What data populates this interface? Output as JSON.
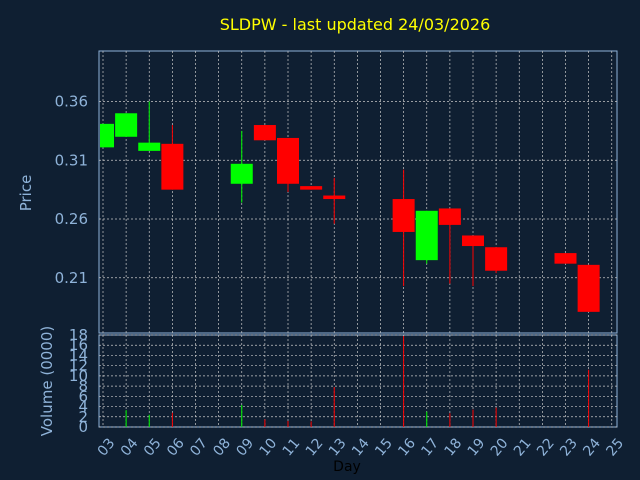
{
  "chart_data": [
    {
      "type": "candlestick",
      "title": "SLDPW - last updated 24/03/2026",
      "ylabel": "Price",
      "ylim": [
        0.163,
        0.403
      ],
      "yticks": [
        0.21,
        0.26,
        0.31,
        0.36
      ],
      "ytick_labels": [
        "0.21",
        "0.26",
        "0.31",
        "0.36"
      ],
      "grid": true,
      "colors": {
        "up": "#00ff00",
        "down": "#ff0000",
        "title": "#ffff00",
        "axis_text": "#8fb3d9",
        "xlabel": "#000000",
        "background": "#0f1f32",
        "frame": "#8fb3d9",
        "grid": "#c8c8c8"
      },
      "x_tick_labels": [
        "03",
        "04",
        "05",
        "06",
        "07",
        "08",
        "09",
        "10",
        "11",
        "12",
        "13",
        "14",
        "15",
        "16",
        "17",
        "18",
        "19",
        "20",
        "21",
        "22",
        "23",
        "24",
        "25"
      ],
      "candles": [
        {
          "day": "03",
          "open": 0.321,
          "high": 0.341,
          "low": 0.321,
          "close": 0.341
        },
        {
          "day": "04",
          "open": 0.33,
          "high": 0.35,
          "low": 0.33,
          "close": 0.35
        },
        {
          "day": "05",
          "open": 0.318,
          "high": 0.36,
          "low": 0.318,
          "close": 0.325
        },
        {
          "day": "06",
          "open": 0.324,
          "high": 0.34,
          "low": 0.285,
          "close": 0.285
        },
        {
          "day": "09",
          "open": 0.29,
          "high": 0.335,
          "low": 0.274,
          "close": 0.307
        },
        {
          "day": "10",
          "open": 0.34,
          "high": 0.34,
          "low": 0.328,
          "close": 0.327
        },
        {
          "day": "11",
          "open": 0.329,
          "high": 0.329,
          "low": 0.283,
          "close": 0.29
        },
        {
          "day": "12",
          "open": 0.288,
          "high": 0.288,
          "low": 0.285,
          "close": 0.285
        },
        {
          "day": "13",
          "open": 0.28,
          "high": 0.295,
          "low": 0.256,
          "close": 0.277
        },
        {
          "day": "16",
          "open": 0.277,
          "high": 0.302,
          "low": 0.203,
          "close": 0.249
        },
        {
          "day": "17",
          "open": 0.225,
          "high": 0.267,
          "low": 0.222,
          "close": 0.267
        },
        {
          "day": "18",
          "open": 0.269,
          "high": 0.269,
          "low": 0.205,
          "close": 0.255
        },
        {
          "day": "19",
          "open": 0.246,
          "high": 0.246,
          "low": 0.203,
          "close": 0.237
        },
        {
          "day": "20",
          "open": 0.236,
          "high": 0.236,
          "low": 0.214,
          "close": 0.216
        },
        {
          "day": "23",
          "open": 0.231,
          "high": 0.231,
          "low": 0.222,
          "close": 0.222
        },
        {
          "day": "24",
          "open": 0.221,
          "high": 0.221,
          "low": 0.181,
          "close": 0.181
        }
      ]
    },
    {
      "type": "bar",
      "ylabel": "Volume (0000)",
      "xlabel": "Day",
      "ylim": [
        0,
        18
      ],
      "yticks": [
        0,
        2,
        4,
        6,
        8,
        10,
        12,
        14,
        16,
        18
      ],
      "ytick_labels": [
        "0",
        "2",
        "4",
        "6",
        "8",
        "10",
        "12",
        "14",
        "16",
        "18"
      ],
      "volumes": [
        {
          "day": "04",
          "value": 3.3,
          "direction": "up"
        },
        {
          "day": "05",
          "value": 2.4,
          "direction": "up"
        },
        {
          "day": "06",
          "value": 2.8,
          "direction": "down"
        },
        {
          "day": "09",
          "value": 4.3,
          "direction": "up"
        },
        {
          "day": "10",
          "value": 1.5,
          "direction": "down"
        },
        {
          "day": "11",
          "value": 1.2,
          "direction": "down"
        },
        {
          "day": "12",
          "value": 1.1,
          "direction": "down"
        },
        {
          "day": "13",
          "value": 7.8,
          "direction": "down"
        },
        {
          "day": "16",
          "value": 17.8,
          "direction": "down"
        },
        {
          "day": "17",
          "value": 3.0,
          "direction": "up"
        },
        {
          "day": "18",
          "value": 2.7,
          "direction": "down"
        },
        {
          "day": "19",
          "value": 3.4,
          "direction": "down"
        },
        {
          "day": "20",
          "value": 3.8,
          "direction": "down"
        },
        {
          "day": "24",
          "value": 11.2,
          "direction": "down"
        }
      ]
    }
  ]
}
